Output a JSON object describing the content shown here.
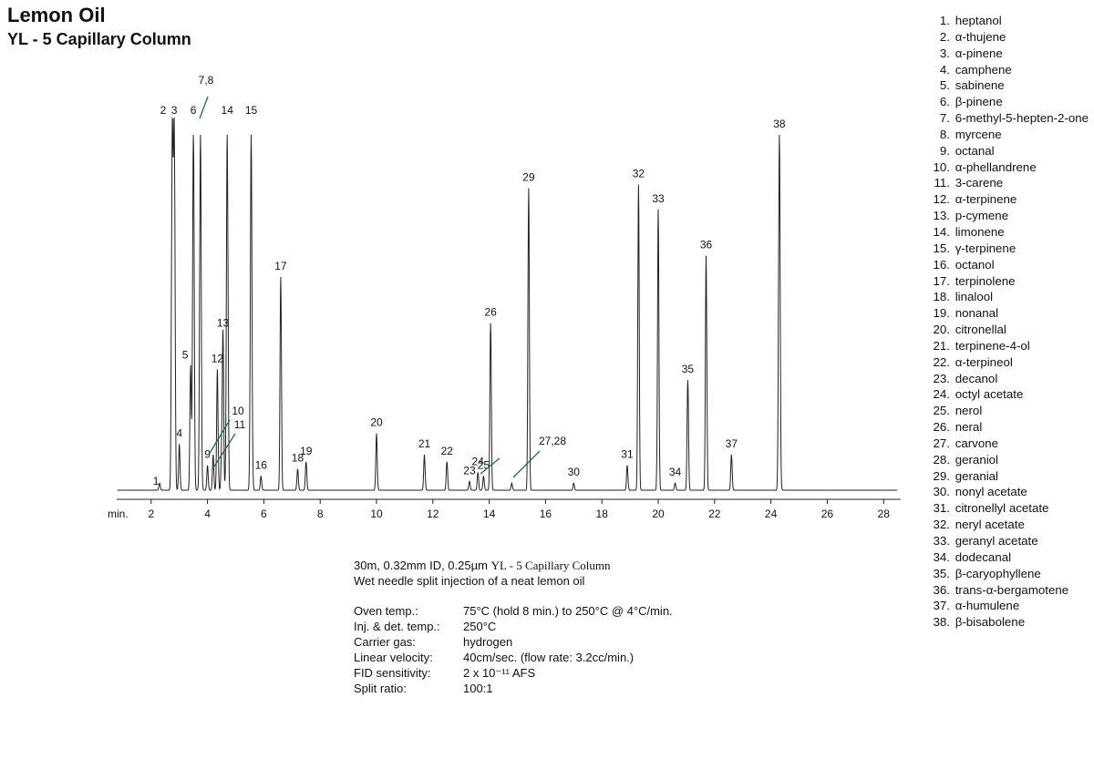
{
  "chart_data": {
    "type": "line",
    "title": "Lemon Oil",
    "subtitle": "YL - 5 Capillary Column",
    "xlabel": "min.",
    "x_ticks": [
      2,
      4,
      6,
      8,
      10,
      12,
      14,
      16,
      18,
      20,
      22,
      24,
      26,
      28
    ],
    "xlim": [
      0,
      28.6
    ],
    "ylim": [
      0,
      1
    ],
    "peaks": [
      {
        "label": "1",
        "t": 2.3,
        "h": 0.02
      },
      {
        "label": "2",
        "t": 2.75,
        "h": 1.0,
        "clip": true
      },
      {
        "label": "3",
        "t": 2.82,
        "h": 1.0,
        "clip": true
      },
      {
        "label": "4",
        "t": 3.0,
        "h": 0.13
      },
      {
        "label": "5",
        "t": 3.4,
        "h": 0.35
      },
      {
        "label": "6",
        "t": 3.5,
        "h": 1.0,
        "clip": true
      },
      {
        "label": "7,8",
        "t": 3.75,
        "h": 1.0,
        "clip": true
      },
      {
        "label": "9",
        "t": 4.0,
        "h": 0.07
      },
      {
        "label": "10",
        "t": 4.2,
        "h": 0.1
      },
      {
        "label": "11",
        "t": 4.5,
        "h": 0.09
      },
      {
        "label": "12",
        "t": 4.35,
        "h": 0.34
      },
      {
        "label": "13",
        "t": 4.55,
        "h": 0.44
      },
      {
        "label": "14",
        "t": 4.7,
        "h": 1.0,
        "clip": true
      },
      {
        "label": "15",
        "t": 5.55,
        "h": 1.0,
        "clip": true
      },
      {
        "label": "16",
        "t": 5.9,
        "h": 0.04
      },
      {
        "label": "17",
        "t": 6.6,
        "h": 0.6
      },
      {
        "label": "18",
        "t": 7.2,
        "h": 0.06
      },
      {
        "label": "19",
        "t": 7.5,
        "h": 0.08
      },
      {
        "label": "20",
        "t": 10.0,
        "h": 0.16
      },
      {
        "label": "21",
        "t": 11.7,
        "h": 0.1
      },
      {
        "label": "22",
        "t": 12.5,
        "h": 0.08
      },
      {
        "label": "23",
        "t": 13.3,
        "h": 0.025
      },
      {
        "label": "24",
        "t": 13.6,
        "h": 0.05
      },
      {
        "label": "25",
        "t": 13.8,
        "h": 0.04
      },
      {
        "label": "26",
        "t": 14.05,
        "h": 0.47
      },
      {
        "label": "27,28",
        "t": 14.8,
        "h": 0.02
      },
      {
        "label": "29",
        "t": 15.4,
        "h": 0.85
      },
      {
        "label": "30",
        "t": 17.0,
        "h": 0.02
      },
      {
        "label": "31",
        "t": 18.9,
        "h": 0.07
      },
      {
        "label": "32",
        "t": 19.3,
        "h": 0.86
      },
      {
        "label": "33",
        "t": 20.0,
        "h": 0.79
      },
      {
        "label": "34",
        "t": 20.6,
        "h": 0.02
      },
      {
        "label": "35",
        "t": 21.05,
        "h": 0.31
      },
      {
        "label": "36",
        "t": 21.7,
        "h": 0.66
      },
      {
        "label": "37",
        "t": 22.6,
        "h": 0.1
      },
      {
        "label": "38",
        "t": 24.3,
        "h": 1.0
      }
    ]
  },
  "legend": [
    {
      "num": "1.",
      "name": "heptanol"
    },
    {
      "num": "2.",
      "name": "α-thujene"
    },
    {
      "num": "3.",
      "name": "α-pinene"
    },
    {
      "num": "4.",
      "name": "camphene"
    },
    {
      "num": "5.",
      "name": "sabinene"
    },
    {
      "num": "6.",
      "name": "β-pinene"
    },
    {
      "num": "7.",
      "name": "6-methyl-5-hepten-2-one"
    },
    {
      "num": "8.",
      "name": "myrcene"
    },
    {
      "num": "9.",
      "name": "octanal"
    },
    {
      "num": "10.",
      "name": "α-phellandrene"
    },
    {
      "num": "11.",
      "name": "3-carene"
    },
    {
      "num": "12.",
      "name": "α-terpinene"
    },
    {
      "num": "13.",
      "name": "p-cymene"
    },
    {
      "num": "14.",
      "name": "limonene"
    },
    {
      "num": "15.",
      "name": "γ-terpinene"
    },
    {
      "num": "16.",
      "name": "octanol"
    },
    {
      "num": "17.",
      "name": "terpinolene"
    },
    {
      "num": "18.",
      "name": "linalool"
    },
    {
      "num": "19.",
      "name": "nonanal"
    },
    {
      "num": "20.",
      "name": "citronellal"
    },
    {
      "num": "21.",
      "name": "terpinene-4-ol"
    },
    {
      "num": "22.",
      "name": "α-terpineol"
    },
    {
      "num": "23.",
      "name": "decanol"
    },
    {
      "num": "24.",
      "name": "octyl acetate"
    },
    {
      "num": "25.",
      "name": "nerol"
    },
    {
      "num": "26.",
      "name": "neral"
    },
    {
      "num": "27.",
      "name": "carvone"
    },
    {
      "num": "28.",
      "name": "geraniol"
    },
    {
      "num": "29.",
      "name": "geranial"
    },
    {
      "num": "30.",
      "name": "nonyl acetate"
    },
    {
      "num": "31.",
      "name": "citronellyl acetate"
    },
    {
      "num": "32.",
      "name": "neryl acetate"
    },
    {
      "num": "33.",
      "name": "geranyl acetate"
    },
    {
      "num": "34.",
      "name": "dodecanal"
    },
    {
      "num": "35.",
      "name": "β-caryophyllene"
    },
    {
      "num": "36.",
      "name": "trans-α-bergamotene"
    },
    {
      "num": "37.",
      "name": "α-humulene"
    },
    {
      "num": "38.",
      "name": "β-bisabolene"
    }
  ],
  "conditions": {
    "column_spec": "30m, 0.32mm ID, 0.25µm",
    "column_name": "YL - 5 Capillary Column",
    "injection": "Wet needle split injection of a neat lemon oil",
    "rows": [
      {
        "key": "Oven temp.:",
        "value": "75°C (hold 8 min.) to 250°C @ 4°C/min."
      },
      {
        "key": "Inj. & det. temp.:",
        "value": "250°C"
      },
      {
        "key": "Carrier gas:",
        "value": "hydrogen"
      },
      {
        "key": "Linear velocity:",
        "value": "40cm/sec. (flow rate: 3.2cc/min.)"
      },
      {
        "key": "FID sensitivity:",
        "value": "2 x 10⁻¹¹ AFS"
      },
      {
        "key": "Split ratio:",
        "value": "100:1"
      }
    ]
  },
  "colors": {
    "trace": "#222222",
    "pointer": "#1a6b5a"
  }
}
